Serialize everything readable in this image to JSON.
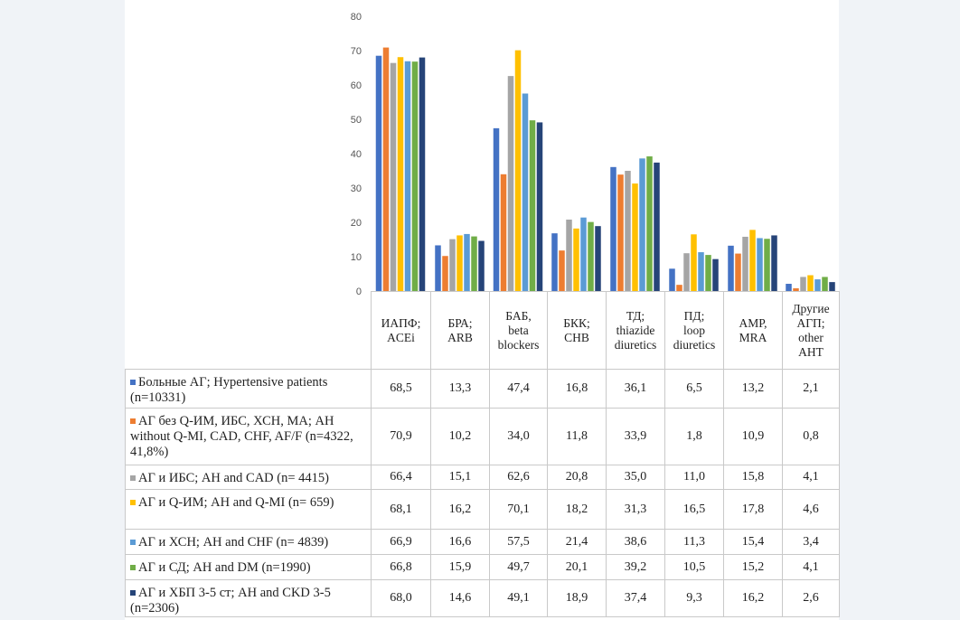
{
  "chart_data": {
    "type": "bar",
    "ylim": [
      0,
      80
    ],
    "yticks": [
      0,
      10,
      20,
      30,
      40,
      50,
      60,
      70,
      80
    ],
    "grid": false,
    "legend": "table-left",
    "categories": [
      [
        "ИАПФ;",
        "ACEi"
      ],
      [
        "БРА;",
        "ARB"
      ],
      [
        "БАБ,",
        "beta",
        "blockers"
      ],
      [
        "БКК;",
        "CHB"
      ],
      [
        "ТД;",
        "thiazide",
        "diuretics"
      ],
      [
        "ПД;",
        "loop",
        "diuretics"
      ],
      [
        "АМР,",
        "MRA"
      ],
      [
        "Другие",
        "АГП;",
        "other",
        "AHT"
      ]
    ],
    "series": [
      {
        "name": "Больные АГ; Hypertensive patients (n=10331)",
        "color": "#4472c4",
        "values": [
          68.5,
          13.3,
          47.4,
          16.8,
          36.1,
          6.5,
          13.2,
          2.1
        ],
        "labels": [
          "68,5",
          "13,3",
          "47,4",
          "16,8",
          "36,1",
          "6,5",
          "13,2",
          "2,1"
        ]
      },
      {
        "name": "АГ без Q-ИМ, ИБС, ХСН, МА; AH without Q-MI, CAD, CHF, AF/F (n=4322, 41,8%)",
        "color": "#ed7d31",
        "values": [
          70.9,
          10.2,
          34.0,
          11.8,
          33.9,
          1.8,
          10.9,
          0.8
        ],
        "labels": [
          "70,9",
          "10,2",
          "34,0",
          "11,8",
          "33,9",
          "1,8",
          "10,9",
          "0,8"
        ]
      },
      {
        "name": "АГ и ИБС; AH and CAD (n= 4415)",
        "color": "#a5a5a5",
        "values": [
          66.4,
          15.1,
          62.6,
          20.8,
          35.0,
          11.0,
          15.8,
          4.1
        ],
        "labels": [
          "66,4",
          "15,1",
          "62,6",
          "20,8",
          "35,0",
          "11,0",
          "15,8",
          "4,1"
        ]
      },
      {
        "name": "АГ и Q-ИМ; AH and Q-MI (n= 659)",
        "color": "#ffc000",
        "values": [
          68.1,
          16.2,
          70.1,
          18.2,
          31.3,
          16.5,
          17.8,
          4.6
        ],
        "labels": [
          "68,1",
          "16,2",
          "70,1",
          "18,2",
          "31,3",
          "16,5",
          "17,8",
          "4,6"
        ]
      },
      {
        "name": "АГ и ХСН; AH and CHF (n= 4839)",
        "color": "#5b9bd5",
        "values": [
          66.9,
          16.6,
          57.5,
          21.4,
          38.6,
          11.3,
          15.4,
          3.4
        ],
        "labels": [
          "66,9",
          "16,6",
          "57,5",
          "21,4",
          "38,6",
          "11,3",
          "15,4",
          "3,4"
        ]
      },
      {
        "name": "АГ и СД; AH and DM (n=1990)",
        "color": "#70ad47",
        "values": [
          66.8,
          15.9,
          49.7,
          20.1,
          39.2,
          10.5,
          15.2,
          4.1
        ],
        "labels": [
          "66,8",
          "15,9",
          "49,7",
          "20,1",
          "39,2",
          "10,5",
          "15,2",
          "4,1"
        ]
      },
      {
        "name": "АГ и ХБП 3-5 ст; AH and CKD 3-5 (n=2306)",
        "color": "#264478",
        "values": [
          68.0,
          14.6,
          49.1,
          18.9,
          37.4,
          9.3,
          16.2,
          2.6
        ],
        "labels": [
          "68,0",
          "14,6",
          "49,1",
          "18,9",
          "37,4",
          "9,3",
          "16,2",
          "2,6"
        ]
      }
    ]
  }
}
